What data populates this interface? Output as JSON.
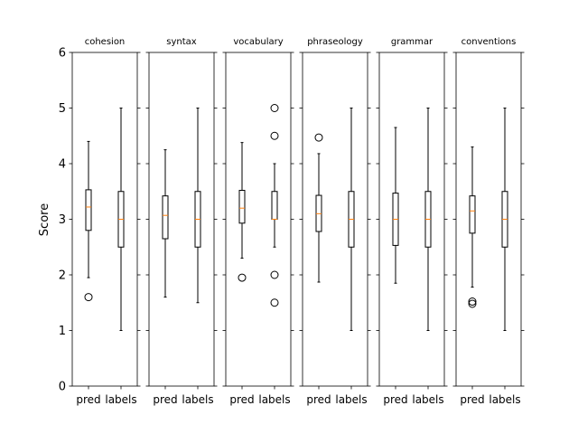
{
  "chart_data": {
    "type": "box",
    "ylabel": "Score",
    "ylim": [
      0,
      6
    ],
    "yticks": [
      0,
      1,
      2,
      3,
      4,
      5,
      6
    ],
    "categories": [
      "pred",
      "labels"
    ],
    "colors": {
      "box": "#000000",
      "median": "#ff7f0e",
      "background": "#ffffff"
    },
    "panels": [
      {
        "title": "cohesion",
        "boxes": [
          {
            "label": "pred",
            "whislo": 1.95,
            "q1": 2.8,
            "med": 3.22,
            "q3": 3.53,
            "whishi": 4.4,
            "fliers": [
              1.6
            ]
          },
          {
            "label": "labels",
            "whislo": 1.0,
            "q1": 2.5,
            "med": 3.0,
            "q3": 3.5,
            "whishi": 5.0,
            "fliers": []
          }
        ]
      },
      {
        "title": "syntax",
        "boxes": [
          {
            "label": "pred",
            "whislo": 1.6,
            "q1": 2.65,
            "med": 3.07,
            "q3": 3.42,
            "whishi": 4.25,
            "fliers": []
          },
          {
            "label": "labels",
            "whislo": 1.5,
            "q1": 2.5,
            "med": 3.0,
            "q3": 3.5,
            "whishi": 5.0,
            "fliers": []
          }
        ]
      },
      {
        "title": "vocabulary",
        "boxes": [
          {
            "label": "pred",
            "whislo": 2.3,
            "q1": 2.93,
            "med": 3.2,
            "q3": 3.52,
            "whishi": 4.38,
            "fliers": [
              1.95
            ]
          },
          {
            "label": "labels",
            "whislo": 2.5,
            "q1": 3.0,
            "med": 3.0,
            "q3": 3.5,
            "whishi": 4.0,
            "fliers": [
              1.5,
              2.0,
              4.5,
              5.0
            ]
          }
        ]
      },
      {
        "title": "phraseology",
        "boxes": [
          {
            "label": "pred",
            "whislo": 1.87,
            "q1": 2.78,
            "med": 3.1,
            "q3": 3.43,
            "whishi": 4.18,
            "fliers": [
              4.47
            ]
          },
          {
            "label": "labels",
            "whislo": 1.0,
            "q1": 2.5,
            "med": 3.0,
            "q3": 3.5,
            "whishi": 5.0,
            "fliers": []
          }
        ]
      },
      {
        "title": "grammar",
        "boxes": [
          {
            "label": "pred",
            "whislo": 1.85,
            "q1": 2.53,
            "med": 3.0,
            "q3": 3.47,
            "whishi": 4.65,
            "fliers": []
          },
          {
            "label": "labels",
            "whislo": 1.0,
            "q1": 2.5,
            "med": 3.0,
            "q3": 3.5,
            "whishi": 5.0,
            "fliers": []
          }
        ]
      },
      {
        "title": "conventions",
        "boxes": [
          {
            "label": "pred",
            "whislo": 1.78,
            "q1": 2.75,
            "med": 3.15,
            "q3": 3.42,
            "whishi": 4.3,
            "fliers": [
              1.48,
              1.52
            ]
          },
          {
            "label": "labels",
            "whislo": 1.0,
            "q1": 2.5,
            "med": 3.0,
            "q3": 3.5,
            "whishi": 5.0,
            "fliers": []
          }
        ]
      }
    ]
  }
}
